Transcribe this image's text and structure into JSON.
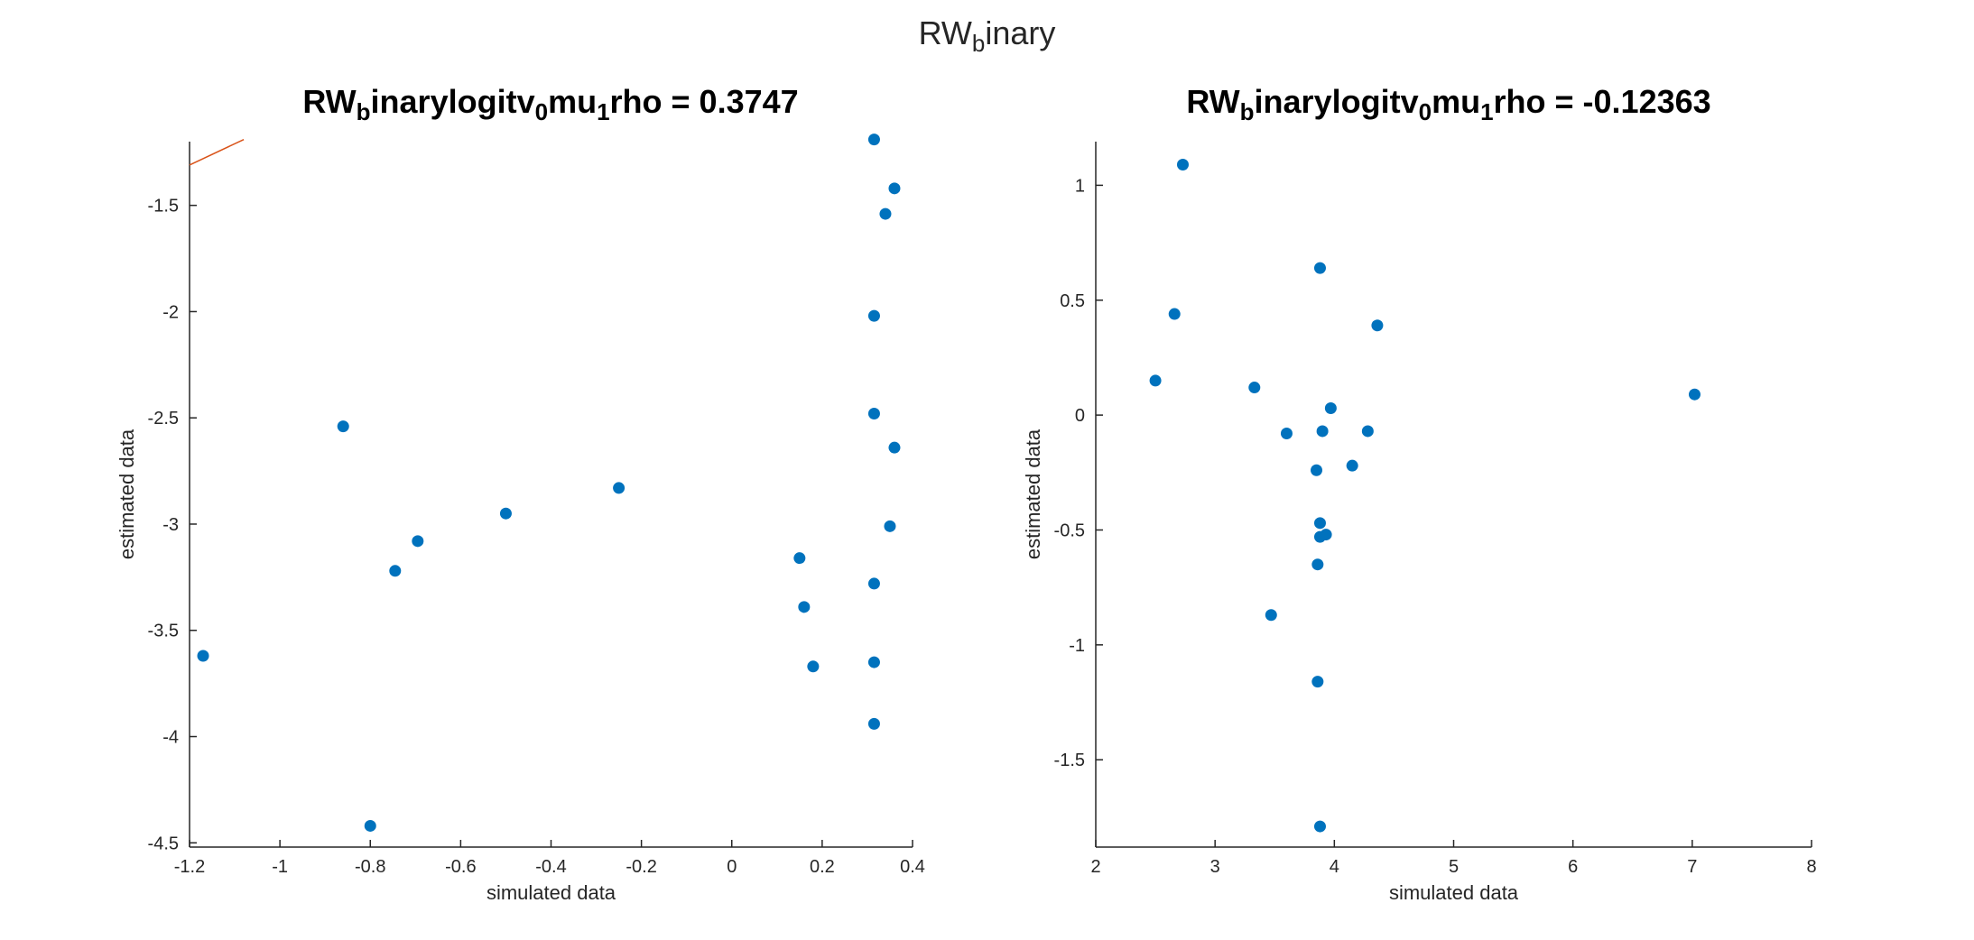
{
  "figure": {
    "suptitle": {
      "main": "RW",
      "sub": "b",
      "rest": "inary"
    }
  },
  "chart_data": [
    {
      "type": "scatter",
      "title": {
        "p1": "RW",
        "s1": "b",
        "p2": "inarylogitv",
        "s2": "0",
        "p3": "mu",
        "s3": "1",
        "p4": "rho = 0.3747"
      },
      "xlabel": "simulated data",
      "ylabel": "estimated data",
      "xlim": [
        -1.2,
        0.4
      ],
      "ylim": [
        -4.52,
        -1.2
      ],
      "xticks": [
        -1.2,
        -1,
        -0.8,
        -0.6,
        -0.4,
        -0.2,
        0,
        0.2,
        0.4
      ],
      "xtick_labels": [
        "-1.2",
        "-1",
        "-0.8",
        "-0.6",
        "-0.4",
        "-0.2",
        "0",
        "0.2",
        "0.4"
      ],
      "yticks": [
        -4.5,
        -4,
        -3.5,
        -3,
        -2.5,
        -2,
        -1.5
      ],
      "ytick_labels": [
        "-4.5",
        "-4",
        "-3.5",
        "-3",
        "-2.5",
        "-2",
        "-1.5"
      ],
      "grid": false,
      "marker_color": "#0072BD",
      "line_color": "#D95319",
      "reference_line": {
        "x": [
          -1.2,
          -1.08
        ],
        "y": [
          -1.31,
          -1.19
        ]
      },
      "x": [
        0.315,
        0.36,
        0.34,
        0.315,
        0.315,
        0.36,
        0.35,
        0.15,
        0.315,
        0.16,
        0.315,
        0.18,
        0.315,
        -0.25,
        -0.5,
        -0.695,
        -0.745,
        -0.86,
        -1.17,
        -0.8
      ],
      "y": [
        -1.19,
        -1.42,
        -1.54,
        -2.02,
        -2.48,
        -2.64,
        -3.01,
        -3.16,
        -3.28,
        -3.39,
        -3.65,
        -3.67,
        -3.94,
        -2.83,
        -2.95,
        -3.08,
        -3.22,
        -2.54,
        -3.62,
        -4.42
      ]
    },
    {
      "type": "scatter",
      "title": {
        "p1": "RW",
        "s1": "b",
        "p2": "inarylogitv",
        "s2": "0",
        "p3": "mu",
        "s3": "1",
        "p4": "rho = -0.12363"
      },
      "xlabel": "simulated data",
      "ylabel": "estimated data",
      "xlim": [
        2,
        8
      ],
      "ylim": [
        -1.88,
        1.19
      ],
      "xticks": [
        2,
        3,
        4,
        5,
        6,
        7,
        8
      ],
      "xtick_labels": [
        "2",
        "3",
        "4",
        "5",
        "6",
        "7",
        "8"
      ],
      "yticks": [
        -1.5,
        -1,
        -0.5,
        0,
        0.5,
        1
      ],
      "ytick_labels": [
        "-1.5",
        "-1",
        "-0.5",
        "0",
        "0.5",
        "1"
      ],
      "grid": false,
      "marker_color": "#0072BD",
      "x": [
        2.73,
        2.66,
        2.5,
        3.33,
        3.88,
        4.36,
        3.97,
        3.6,
        3.9,
        4.28,
        3.85,
        4.15,
        3.88,
        3.93,
        3.88,
        3.86,
        3.47,
        3.86,
        3.88,
        7.02
      ],
      "y": [
        1.09,
        0.44,
        0.15,
        0.12,
        0.64,
        0.39,
        0.03,
        -0.08,
        -0.07,
        -0.07,
        -0.24,
        -0.22,
        -0.47,
        -0.52,
        -0.53,
        -0.65,
        -0.87,
        -1.16,
        -1.79,
        0.09
      ]
    }
  ]
}
